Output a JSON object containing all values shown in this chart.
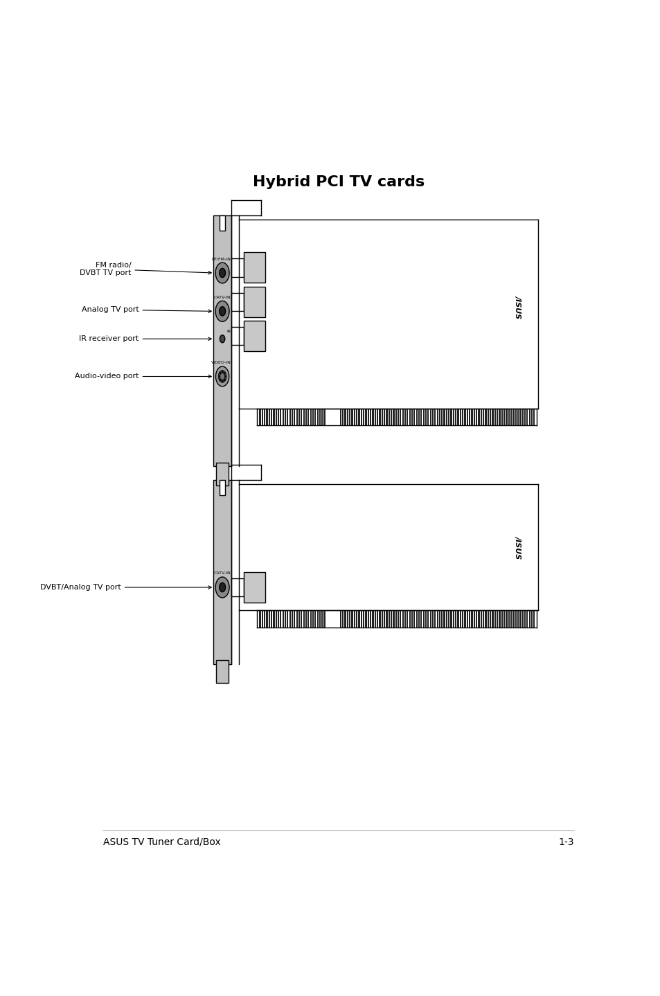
{
  "title": "Hybrid PCI TV cards",
  "title_fontsize": 16,
  "title_bold": true,
  "footer_left": "ASUS TV Tuner Card/Box",
  "footer_right": "1-3",
  "footer_fontsize": 10,
  "bg_color": "#ffffff",
  "line_color": "#000000",
  "card_fill": "#c0c0c0",
  "connector_fill": "#b8b8b8",
  "port_label_fontsize": 4.5,
  "ann_fontsize": 8
}
